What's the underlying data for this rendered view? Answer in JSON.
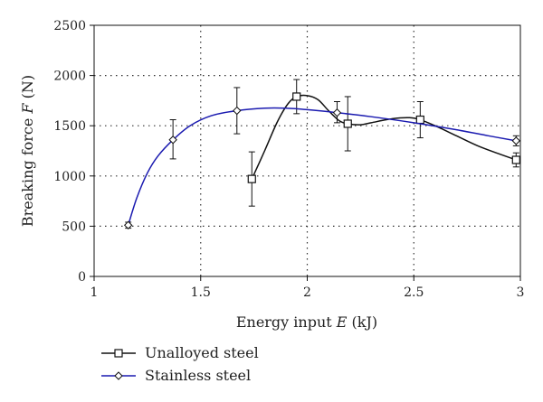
{
  "chart_data": {
    "type": "line",
    "title": "",
    "xlabel": {
      "prefix": "Energy input ",
      "var": "E",
      "suffix": " (kJ)"
    },
    "ylabel": {
      "prefix": "Breaking force ",
      "var": "F",
      "suffix": " (N)"
    },
    "xlim": [
      1,
      3
    ],
    "ylim": [
      0,
      2500
    ],
    "xticks": [
      1,
      1.5,
      2,
      2.5,
      3
    ],
    "xtick_labels": [
      "1",
      "1.5",
      "2",
      "2.5",
      "3"
    ],
    "yticks": [
      0,
      500,
      1000,
      1500,
      2000,
      2500
    ],
    "ytick_labels": [
      "0",
      "500",
      "1000",
      "1500",
      "2000",
      "2500"
    ],
    "grid": "dotted",
    "legend_position": "bottom-left",
    "series": [
      {
        "name": "Unalloyed steel",
        "color": "#111111",
        "marker": "square",
        "x": [
          1.74,
          1.95,
          2.19,
          2.53,
          2.98
        ],
        "y": [
          970,
          1790,
          1520,
          1560,
          1160
        ],
        "err_low": [
          700,
          1620,
          1250,
          1380,
          1090
        ],
        "err_high": [
          1240,
          1960,
          1790,
          1740,
          1230
        ],
        "curve": [
          [
            1.74,
            970
          ],
          [
            1.8,
            1250
          ],
          [
            1.86,
            1540
          ],
          [
            1.91,
            1720
          ],
          [
            1.95,
            1790
          ],
          [
            2.0,
            1800
          ],
          [
            2.05,
            1760
          ],
          [
            2.1,
            1650
          ],
          [
            2.15,
            1550
          ],
          [
            2.19,
            1520
          ],
          [
            2.25,
            1510
          ],
          [
            2.3,
            1530
          ],
          [
            2.4,
            1570
          ],
          [
            2.48,
            1580
          ],
          [
            2.53,
            1560
          ],
          [
            2.6,
            1500
          ],
          [
            2.7,
            1400
          ],
          [
            2.8,
            1300
          ],
          [
            2.9,
            1220
          ],
          [
            2.98,
            1160
          ]
        ]
      },
      {
        "name": "Stainless steel",
        "color": "#1a1ab0",
        "marker": "diamond",
        "x": [
          1.16,
          1.37,
          1.67,
          2.14,
          2.98
        ],
        "y": [
          510,
          1360,
          1650,
          1630,
          1350
        ],
        "err_low": [
          480,
          1170,
          1420,
          1530,
          1300
        ],
        "err_high": [
          540,
          1560,
          1880,
          1740,
          1400
        ],
        "curve": [
          [
            1.16,
            510
          ],
          [
            1.2,
            780
          ],
          [
            1.25,
            1030
          ],
          [
            1.3,
            1200
          ],
          [
            1.37,
            1360
          ],
          [
            1.45,
            1500
          ],
          [
            1.55,
            1600
          ],
          [
            1.67,
            1650
          ],
          [
            1.8,
            1675
          ],
          [
            1.9,
            1675
          ],
          [
            2.0,
            1660
          ],
          [
            2.14,
            1630
          ],
          [
            2.3,
            1590
          ],
          [
            2.5,
            1530
          ],
          [
            2.7,
            1460
          ],
          [
            2.85,
            1400
          ],
          [
            2.98,
            1350
          ]
        ]
      }
    ]
  }
}
